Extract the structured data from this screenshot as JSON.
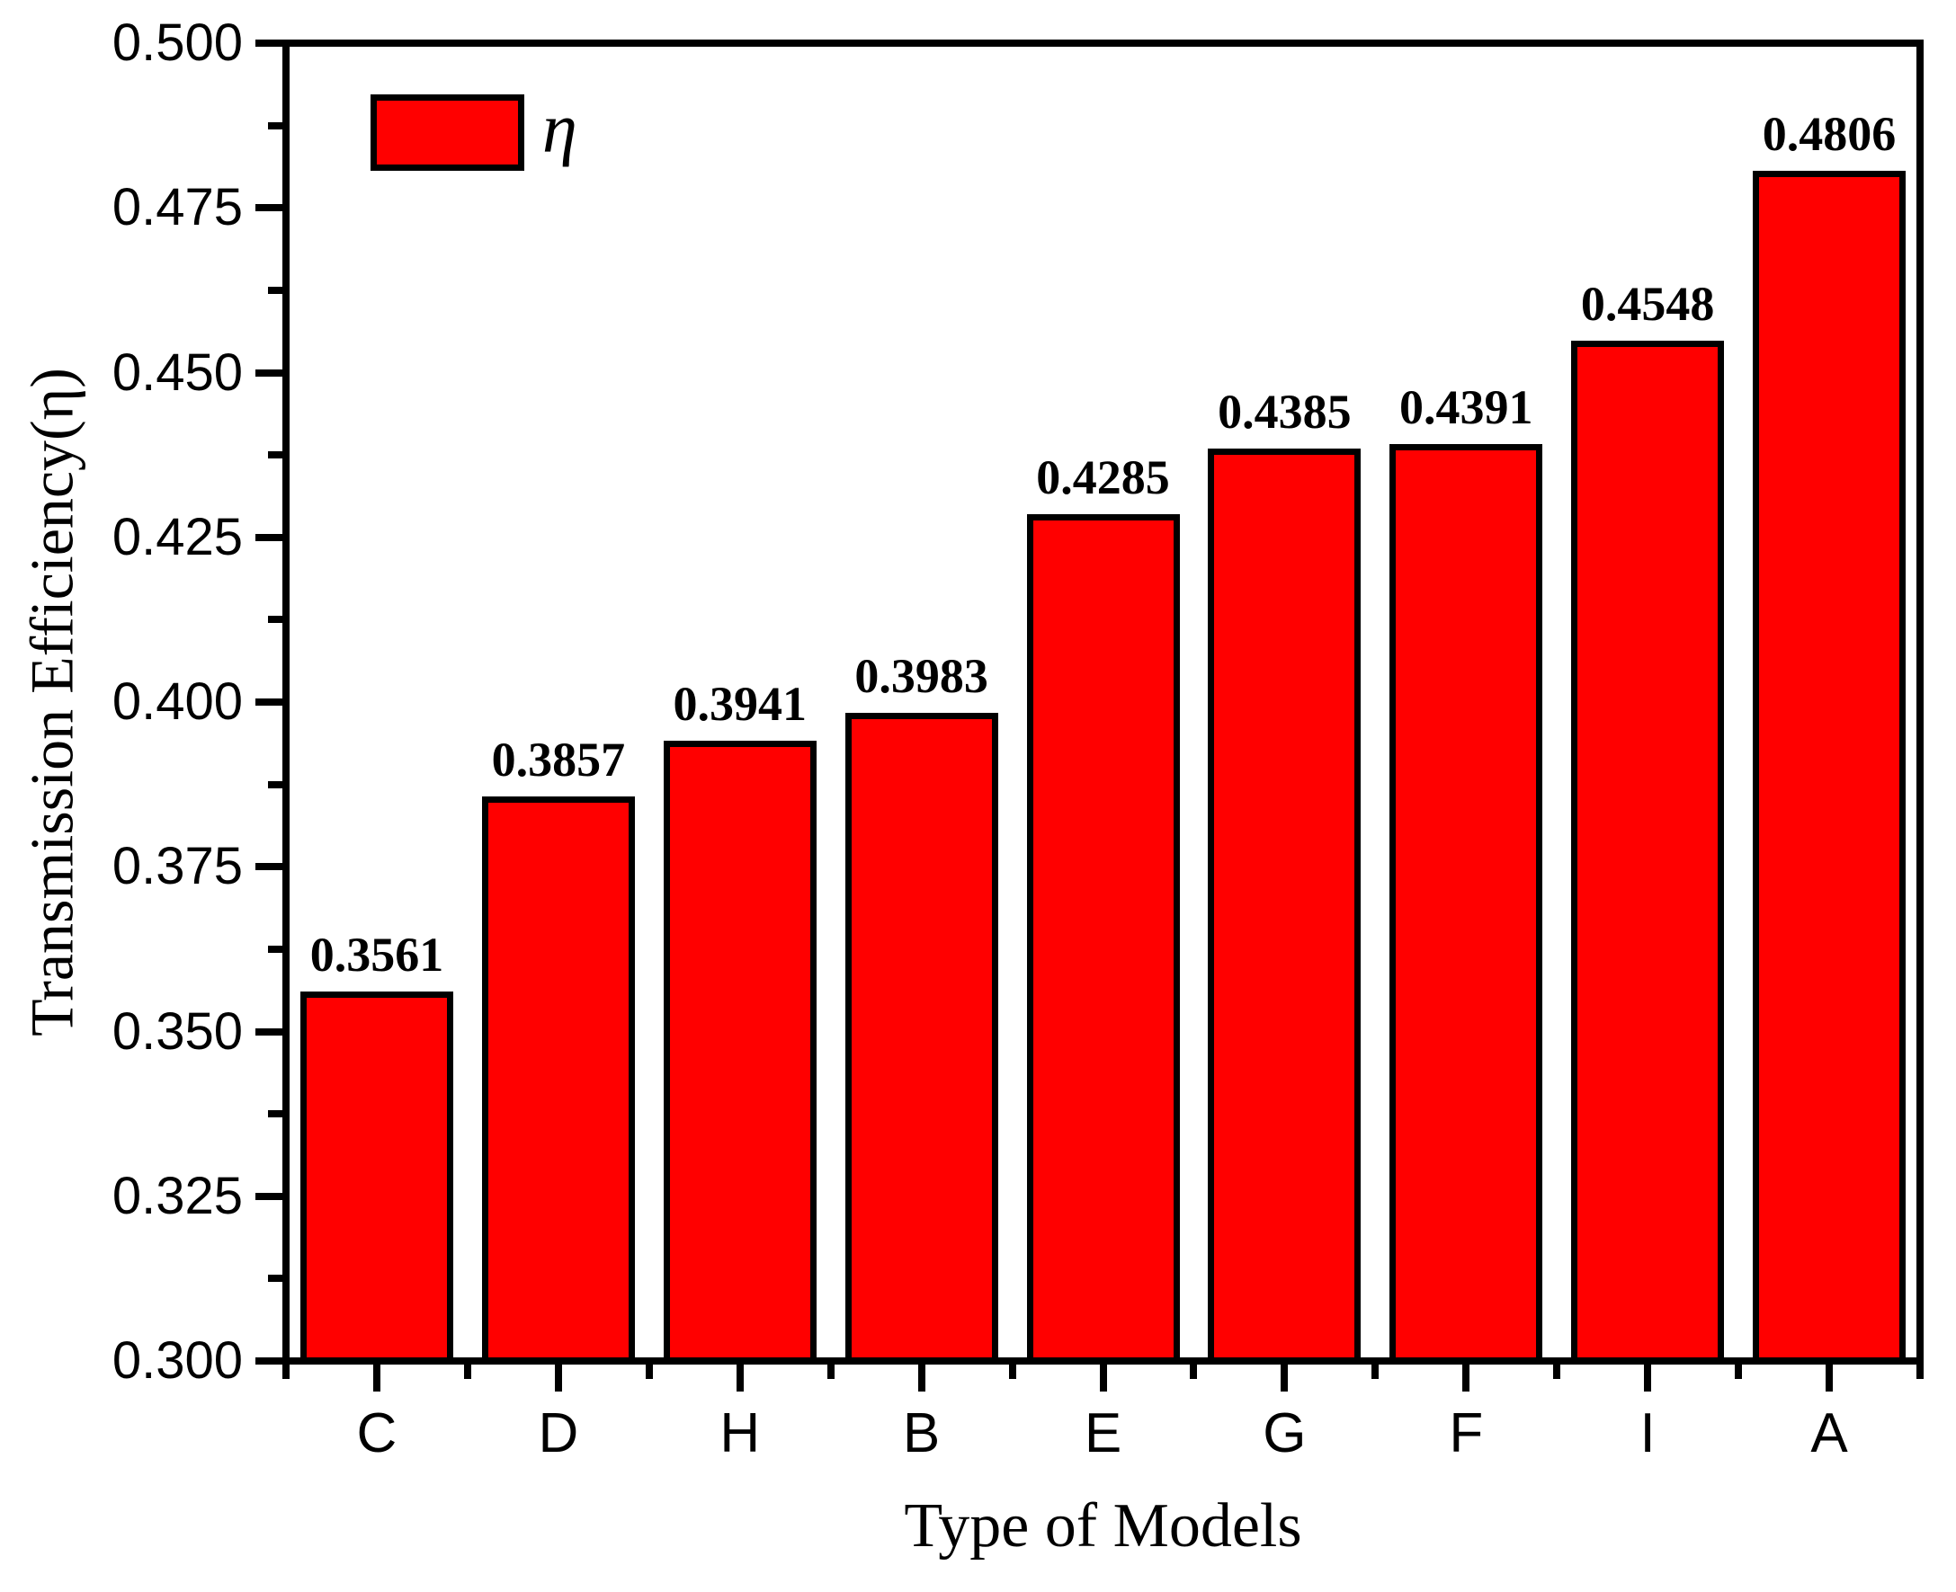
{
  "chart_data": {
    "type": "bar",
    "title": "",
    "xlabel": "Type of Models",
    "ylabel": "Transmission Efficiency(η)",
    "categories": [
      "C",
      "D",
      "H",
      "B",
      "E",
      "G",
      "F",
      "I",
      "A"
    ],
    "series": [
      {
        "name": "η",
        "values": [
          0.3561,
          0.3857,
          0.3941,
          0.3983,
          0.4285,
          0.4385,
          0.4391,
          0.4548,
          0.4806
        ]
      }
    ],
    "value_labels": [
      "0.3561",
      "0.3857",
      "0.3941",
      "0.3983",
      "0.4285",
      "0.4385",
      "0.4391",
      "0.4548",
      "0.4806"
    ],
    "ylim": [
      0.3,
      0.5
    ],
    "y_major_step": 0.025,
    "y_minor_step": 0.0125,
    "y_tick_labels": [
      "0.300",
      "0.325",
      "0.350",
      "0.375",
      "0.400",
      "0.425",
      "0.450",
      "0.475",
      "0.500"
    ],
    "grid": false,
    "legend": {
      "position": "top-left",
      "entries": [
        {
          "label": "η",
          "color": "#FF0000"
        }
      ]
    },
    "colors": {
      "bar_fill": "#FF0000",
      "bar_border": "#000000",
      "axis": "#000000",
      "text": "#000000",
      "background": "#FFFFFF"
    }
  }
}
